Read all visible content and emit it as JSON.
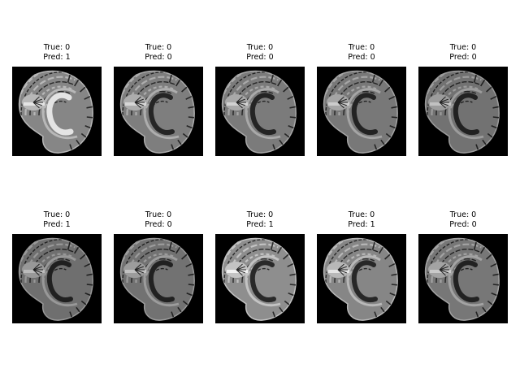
{
  "figure": {
    "panels": [
      {
        "true_label": "True: 0",
        "pred_label": "Pred: 1",
        "brightness": 0.85,
        "contrast_variant": "a"
      },
      {
        "true_label": "True: 0",
        "pred_label": "Pred: 0",
        "brightness": 0.8,
        "contrast_variant": "b"
      },
      {
        "true_label": "True: 0",
        "pred_label": "Pred: 0",
        "brightness": 0.78,
        "contrast_variant": "b"
      },
      {
        "true_label": "True: 0",
        "pred_label": "Pred: 0",
        "brightness": 0.76,
        "contrast_variant": "b"
      },
      {
        "true_label": "True: 0",
        "pred_label": "Pred: 0",
        "brightness": 0.72,
        "contrast_variant": "c"
      },
      {
        "true_label": "True: 0",
        "pred_label": "Pred: 1",
        "brightness": 0.7,
        "contrast_variant": "c"
      },
      {
        "true_label": "True: 0",
        "pred_label": "Pred: 0",
        "brightness": 0.72,
        "contrast_variant": "c"
      },
      {
        "true_label": "True: 0",
        "pred_label": "Pred: 1",
        "brightness": 0.9,
        "contrast_variant": "d"
      },
      {
        "true_label": "True: 0",
        "pred_label": "Pred: 1",
        "brightness": 0.85,
        "contrast_variant": "d"
      },
      {
        "true_label": "True: 0",
        "pred_label": "Pred: 0",
        "brightness": 0.75,
        "contrast_variant": "c"
      }
    ]
  }
}
